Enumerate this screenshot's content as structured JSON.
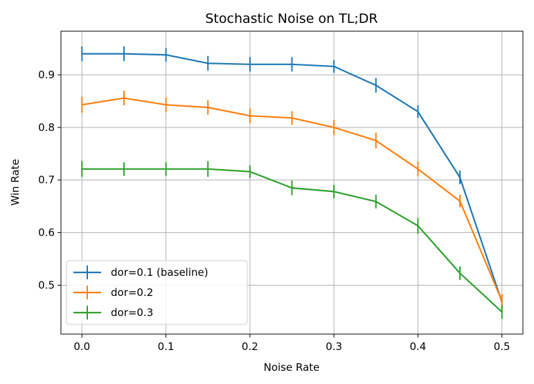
{
  "chart_data": {
    "type": "line",
    "title": "Stochastic Noise on TL;DR",
    "xlabel": "Noise Rate",
    "ylabel": "Win Rate",
    "xlim": [
      -0.025,
      0.525
    ],
    "ylim": [
      0.407,
      0.983
    ],
    "x_ticks": [
      "0.0",
      "0.1",
      "0.2",
      "0.3",
      "0.4",
      "0.5"
    ],
    "y_ticks": [
      "0.5",
      "0.6",
      "0.7",
      "0.8",
      "0.9"
    ],
    "grid": true,
    "legend_position": "lower-left",
    "error_bars": true,
    "x": [
      0.0,
      0.05,
      0.1,
      0.15,
      0.2,
      0.25,
      0.3,
      0.35,
      0.4,
      0.45,
      0.5
    ],
    "series": [
      {
        "name": "dor=0.1 (baseline)",
        "color": "#1f77b4",
        "values": [
          0.94,
          0.94,
          0.938,
          0.922,
          0.92,
          0.92,
          0.916,
          0.88,
          0.83,
          0.705,
          0.468
        ],
        "errors": [
          0.014,
          0.014,
          0.013,
          0.014,
          0.014,
          0.014,
          0.012,
          0.014,
          0.012,
          0.013,
          0.014
        ]
      },
      {
        "name": "dor=0.2",
        "color": "#ff7f0e",
        "values": [
          0.843,
          0.856,
          0.843,
          0.838,
          0.822,
          0.818,
          0.8,
          0.775,
          0.721,
          0.66,
          0.47
        ],
        "errors": [
          0.015,
          0.014,
          0.014,
          0.014,
          0.014,
          0.013,
          0.014,
          0.015,
          0.014,
          0.012,
          0.013
        ]
      },
      {
        "name": "dor=0.3",
        "color": "#2ca02c",
        "values": [
          0.721,
          0.721,
          0.721,
          0.721,
          0.716,
          0.685,
          0.678,
          0.659,
          0.613,
          0.523,
          0.449
        ],
        "errors": [
          0.015,
          0.013,
          0.013,
          0.015,
          0.012,
          0.014,
          0.013,
          0.013,
          0.015,
          0.013,
          0.013
        ]
      }
    ]
  }
}
